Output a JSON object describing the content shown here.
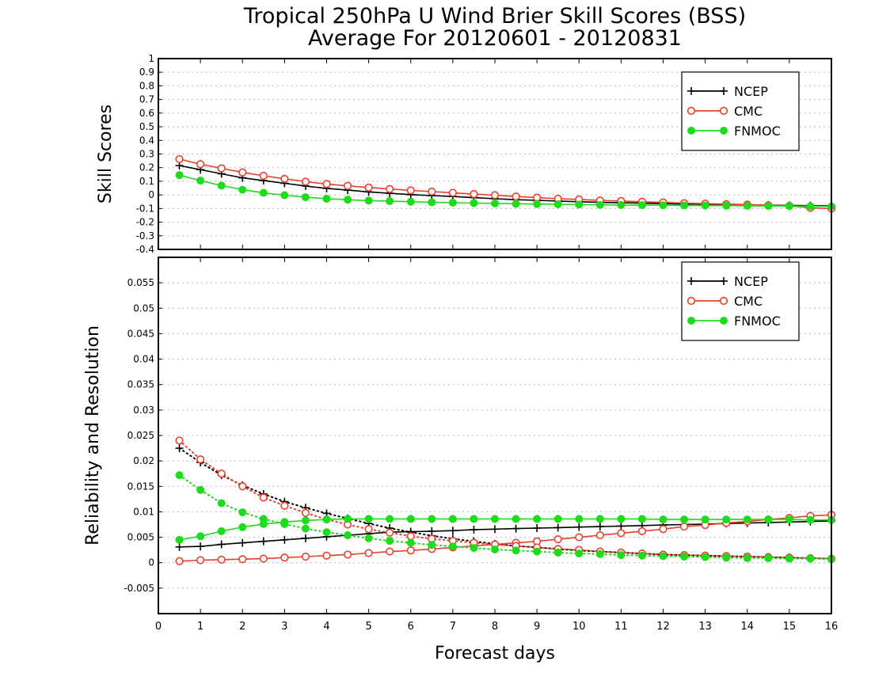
{
  "chart": {
    "title_line1": "Tropical 250hPa U Wind Brier Skill Scores (BSS)",
    "title_line2": "Average For 20120601 - 20120831",
    "xlabel": "Forecast days"
  },
  "chart_data": [
    {
      "type": "line",
      "ylabel": "Skill Scores",
      "ylim": [
        -0.4,
        1.0
      ],
      "xlim": [
        0,
        16
      ],
      "grid": true,
      "legend_position": "top-right",
      "y_ticks": [
        "-0.4",
        "-0.3",
        "-0.2",
        "-0.1",
        "0",
        "0.1",
        "0.2",
        "0.3",
        "0.4",
        "0.5",
        "0.6",
        "0.7",
        "0.8",
        "0.9",
        "1"
      ],
      "x_ticks": [
        "0",
        "1",
        "2",
        "3",
        "4",
        "5",
        "6",
        "7",
        "8",
        "9",
        "10",
        "11",
        "12",
        "13",
        "14",
        "15",
        "16"
      ],
      "x": [
        0.5,
        1,
        1.5,
        2,
        2.5,
        3,
        3.5,
        4,
        4.5,
        5,
        5.5,
        6,
        6.5,
        7,
        7.5,
        8,
        8.5,
        9,
        9.5,
        10,
        10.5,
        11,
        11.5,
        12,
        12.5,
        13,
        13.5,
        14,
        14.5,
        15,
        15.5,
        16
      ],
      "series": [
        {
          "name": "NCEP",
          "color": "#000000",
          "marker": "plus",
          "style": "solid",
          "values": [
            0.215,
            0.185,
            0.155,
            0.125,
            0.105,
            0.085,
            0.065,
            0.048,
            0.035,
            0.022,
            0.012,
            0.002,
            -0.005,
            -0.012,
            -0.02,
            -0.028,
            -0.035,
            -0.04,
            -0.045,
            -0.05,
            -0.055,
            -0.058,
            -0.061,
            -0.064,
            -0.067,
            -0.069,
            -0.071,
            -0.073,
            -0.075,
            -0.077,
            -0.079,
            -0.08
          ]
        },
        {
          "name": "CMC",
          "color": "#e8402a",
          "marker": "open-circle",
          "style": "solid",
          "values": [
            0.262,
            0.225,
            0.195,
            0.165,
            0.14,
            0.118,
            0.097,
            0.08,
            0.066,
            0.054,
            0.043,
            0.033,
            0.024,
            0.015,
            0.006,
            -0.002,
            -0.012,
            -0.02,
            -0.028,
            -0.033,
            -0.041,
            -0.045,
            -0.05,
            -0.055,
            -0.061,
            -0.064,
            -0.068,
            -0.071,
            -0.076,
            -0.08,
            -0.095,
            -0.1
          ]
        },
        {
          "name": "FNMOC",
          "color": "#1cdc1c",
          "marker": "filled-circle",
          "style": "solid",
          "values": [
            0.145,
            0.105,
            0.068,
            0.038,
            0.015,
            -0.002,
            -0.017,
            -0.028,
            -0.035,
            -0.042,
            -0.046,
            -0.05,
            -0.054,
            -0.057,
            -0.06,
            -0.062,
            -0.065,
            -0.067,
            -0.069,
            -0.071,
            -0.073,
            -0.074,
            -0.075,
            -0.076,
            -0.077,
            -0.078,
            -0.079,
            -0.08,
            -0.081,
            -0.082,
            -0.083,
            -0.084
          ]
        }
      ]
    },
    {
      "type": "line",
      "ylabel": "Reliability and Resolution",
      "ylim": [
        -0.01,
        0.06
      ],
      "xlim": [
        0,
        16
      ],
      "grid": true,
      "legend_position": "top-right",
      "y_ticks": [
        "-0.005",
        "0",
        "0.005",
        "0.01",
        "0.015",
        "0.02",
        "0.025",
        "0.03",
        "0.035",
        "0.04",
        "0.045",
        "0.05",
        "0.055"
      ],
      "x_ticks": [
        "0",
        "1",
        "2",
        "3",
        "4",
        "5",
        "6",
        "7",
        "8",
        "9",
        "10",
        "11",
        "12",
        "13",
        "14",
        "15",
        "16"
      ],
      "x": [
        0.5,
        1,
        1.5,
        2,
        2.5,
        3,
        3.5,
        4,
        4.5,
        5,
        5.5,
        6,
        6.5,
        7,
        7.5,
        8,
        8.5,
        9,
        9.5,
        10,
        10.5,
        11,
        11.5,
        12,
        12.5,
        13,
        13.5,
        14,
        14.5,
        15,
        15.5,
        16
      ],
      "series": [
        {
          "name": "NCEP",
          "color": "#000000",
          "marker": "plus",
          "role": "resolution",
          "style": "solid",
          "values": [
            0.0031,
            0.0032,
            0.0036,
            0.0039,
            0.0042,
            0.0045,
            0.0048,
            0.0051,
            0.0054,
            0.0057,
            0.006,
            0.0061,
            0.0062,
            0.0063,
            0.0065,
            0.0066,
            0.0067,
            0.0068,
            0.0069,
            0.007,
            0.0071,
            0.0072,
            0.0073,
            0.0074,
            0.0075,
            0.0076,
            0.0077,
            0.0078,
            0.0079,
            0.008,
            0.0081,
            0.0082
          ]
        },
        {
          "name": "NCEP",
          "color": "#000000",
          "marker": "plus",
          "role": "reliability",
          "style": "dotted",
          "values": [
            0.0225,
            0.0197,
            0.0172,
            0.0152,
            0.0135,
            0.012,
            0.0108,
            0.0097,
            0.0087,
            0.0077,
            0.0068,
            0.006,
            0.0053,
            0.0047,
            0.0042,
            0.0037,
            0.0033,
            0.003,
            0.0027,
            0.0024,
            0.0022,
            0.002,
            0.0018,
            0.0016,
            0.0015,
            0.0014,
            0.0013,
            0.0012,
            0.0011,
            0.001,
            0.0009,
            0.0008
          ]
        },
        {
          "name": "CMC",
          "color": "#e8402a",
          "marker": "open-circle",
          "role": "resolution",
          "style": "solid",
          "values": [
            0.0003,
            0.0005,
            0.0006,
            0.0007,
            0.0008,
            0.001,
            0.0012,
            0.0014,
            0.0016,
            0.0019,
            0.0022,
            0.0024,
            0.0027,
            0.003,
            0.0033,
            0.0036,
            0.0039,
            0.0042,
            0.0046,
            0.005,
            0.0054,
            0.0058,
            0.0062,
            0.0066,
            0.0071,
            0.0074,
            0.0078,
            0.0081,
            0.0085,
            0.0088,
            0.0092,
            0.0094
          ]
        },
        {
          "name": "CMC",
          "color": "#e8402a",
          "marker": "open-circle",
          "role": "reliability",
          "style": "dotted",
          "values": [
            0.024,
            0.0203,
            0.0175,
            0.015,
            0.0128,
            0.0112,
            0.0098,
            0.0085,
            0.0075,
            0.0066,
            0.0059,
            0.0052,
            0.0047,
            0.0043,
            0.0039,
            0.0036,
            0.0033,
            0.003,
            0.0027,
            0.0025,
            0.0022,
            0.002,
            0.0018,
            0.0016,
            0.0015,
            0.0014,
            0.0013,
            0.0012,
            0.0011,
            0.001,
            0.0009,
            0.0008
          ]
        },
        {
          "name": "FNMOC",
          "color": "#1cdc1c",
          "marker": "filled-circle",
          "role": "resolution",
          "style": "solid",
          "values": [
            0.0045,
            0.0052,
            0.0062,
            0.007,
            0.0076,
            0.008,
            0.0083,
            0.0085,
            0.0086,
            0.0086,
            0.0086,
            0.0086,
            0.0086,
            0.0086,
            0.0086,
            0.0086,
            0.0086,
            0.0086,
            0.0086,
            0.0086,
            0.0086,
            0.0086,
            0.0086,
            0.0085,
            0.0085,
            0.0085,
            0.0085,
            0.0085,
            0.0085,
            0.0085,
            0.0084,
            0.0084
          ]
        },
        {
          "name": "FNMOC",
          "color": "#1cdc1c",
          "marker": "filled-circle",
          "role": "reliability",
          "style": "dotted",
          "values": [
            0.0172,
            0.0143,
            0.0117,
            0.0099,
            0.0086,
            0.0076,
            0.0067,
            0.006,
            0.0054,
            0.0048,
            0.0043,
            0.0039,
            0.0035,
            0.0032,
            0.0029,
            0.0026,
            0.0024,
            0.0022,
            0.002,
            0.0018,
            0.0017,
            0.0015,
            0.0014,
            0.0013,
            0.0012,
            0.0011,
            0.001,
            0.0009,
            0.0009,
            0.0008,
            0.0008,
            0.0007
          ]
        }
      ]
    }
  ],
  "legend": {
    "entries": [
      {
        "label": "NCEP",
        "color": "#000000",
        "marker": "plus"
      },
      {
        "label": "CMC",
        "color": "#e8402a",
        "marker": "open-circle"
      },
      {
        "label": "FNMOC",
        "color": "#1cdc1c",
        "marker": "filled-circle"
      }
    ]
  }
}
